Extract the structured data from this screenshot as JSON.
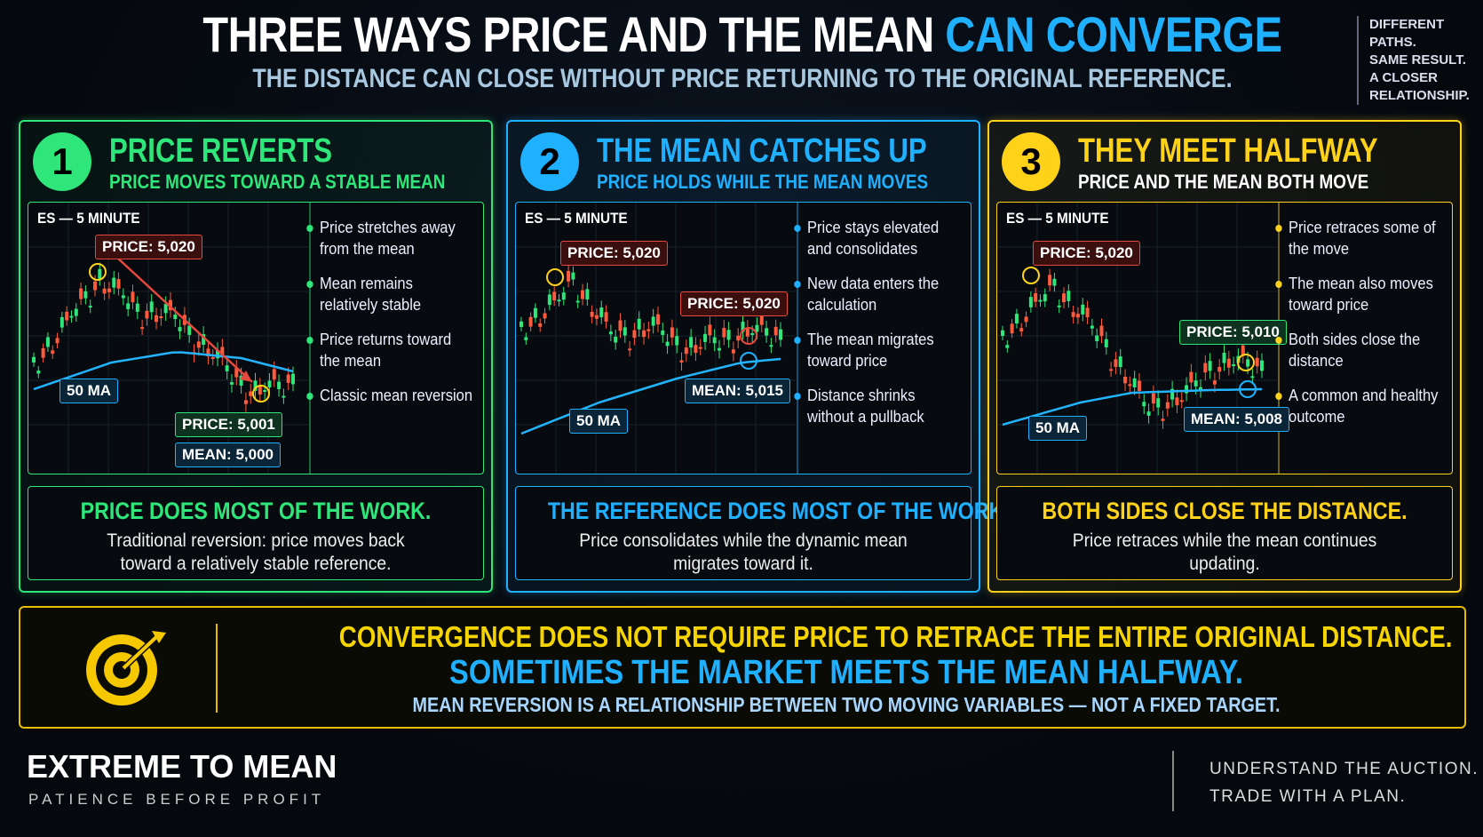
{
  "header": {
    "title_main": "THREE WAYS PRICE AND THE MEAN",
    "title_accent": "CAN CONVERGE",
    "subtitle": "THE DISTANCE CAN CLOSE WITHOUT PRICE RETURNING TO THE ORIGINAL REFERENCE.",
    "side_note": [
      "DIFFERENT PATHS.",
      "SAME RESULT.",
      "A CLOSER RELATIONSHIP."
    ]
  },
  "panels": [
    {
      "number": "1",
      "title": "PRICE REVERTS",
      "subtitle": "PRICE MOVES TOWARD A STABLE MEAN",
      "chart_label": "ES — 5 MINUTE",
      "price_label": "PRICE: 5,020",
      "price_label_2": "PRICE: 5,001",
      "mean_label": "MEAN: 5,000",
      "ma_label": "50 MA",
      "bullets": [
        "Price stretches away from the mean",
        "Mean remains relatively stable",
        "Price returns toward the mean",
        "Classic mean reversion"
      ],
      "conclusion_title": "PRICE DOES MOST OF THE WORK.",
      "conclusion_text": "Traditional reversion: price moves back toward a relatively stable reference."
    },
    {
      "number": "2",
      "title": "THE MEAN CATCHES UP",
      "subtitle": "PRICE HOLDS WHILE THE MEAN MOVES",
      "chart_label": "ES — 5 MINUTE",
      "price_label": "PRICE: 5,020",
      "price_label_2": "PRICE: 5,020",
      "mean_label": "MEAN: 5,015",
      "ma_label": "50 MA",
      "bullets": [
        "Price stays elevated and consolidates",
        "New data enters the calculation",
        "The mean migrates toward price",
        "Distance shrinks without a pullback"
      ],
      "conclusion_title": "THE REFERENCE DOES MOST OF THE WORK.",
      "conclusion_text": "Price consolidates while the dynamic mean migrates toward it."
    },
    {
      "number": "3",
      "title": "THEY MEET HALFWAY",
      "subtitle": "PRICE AND THE MEAN BOTH MOVE",
      "chart_label": "ES — 5 MINUTE",
      "price_label": "PRICE: 5,020",
      "price_label_2": "PRICE: 5,010",
      "mean_label": "MEAN: 5,008",
      "ma_label": "50 MA",
      "bullets": [
        "Price retraces some of the move",
        "The mean also moves toward price",
        "Both sides close the distance",
        "A common and healthy outcome"
      ],
      "conclusion_title": "BOTH SIDES CLOSE THE DISTANCE.",
      "conclusion_text": "Price retraces while the mean continues updating."
    }
  ],
  "banner": {
    "line1": "CONVERGENCE DOES NOT REQUIRE PRICE TO RETRACE THE ENTIRE ORIGINAL DISTANCE.",
    "line2": "SOMETIMES THE MARKET MEETS THE MEAN HALFWAY.",
    "line3": "MEAN REVERSION IS A RELATIONSHIP BETWEEN TWO MOVING VARIABLES — NOT A FIXED TARGET."
  },
  "footer": {
    "brand": "EXTREME TO MEAN",
    "tagline": "PATIENCE BEFORE PROFIT",
    "right": [
      "UNDERSTAND THE AUCTION.",
      "TRADE WITH A PLAN."
    ]
  }
}
